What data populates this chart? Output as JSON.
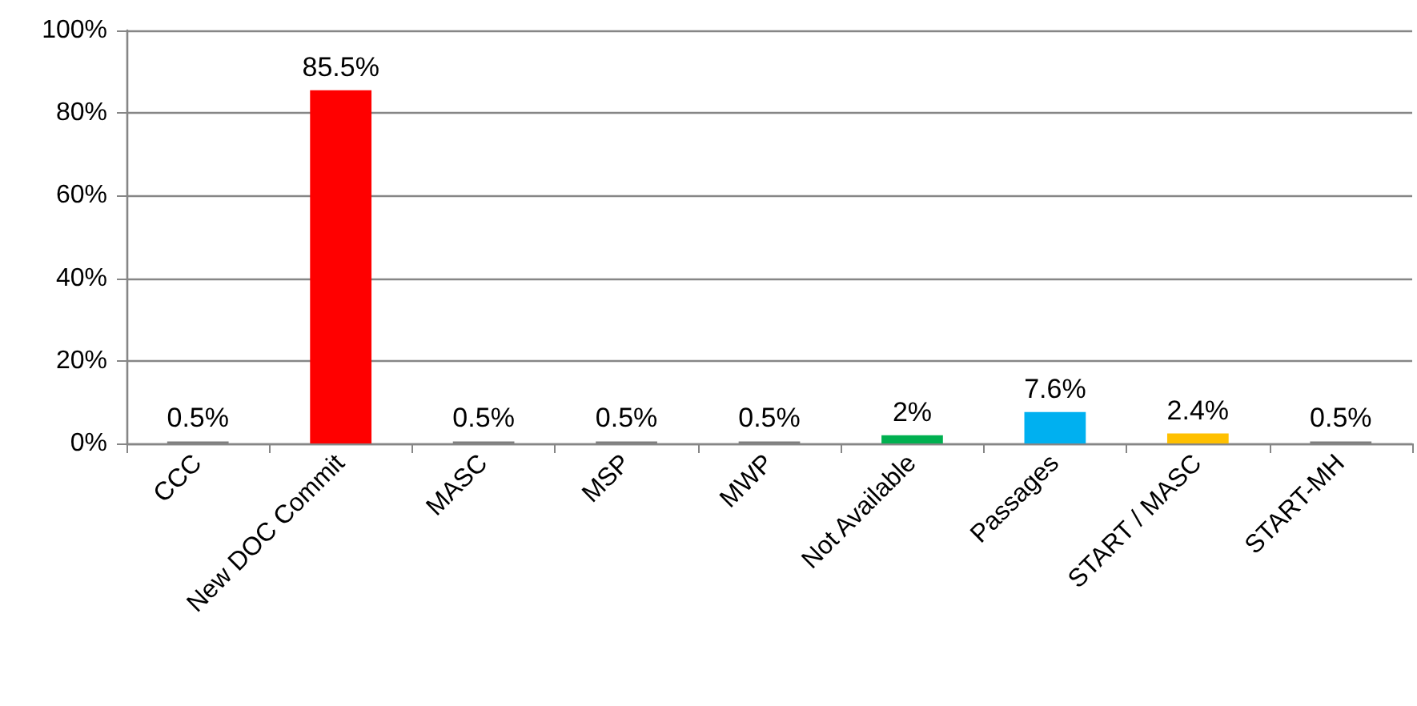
{
  "chart_data": {
    "type": "bar",
    "categories": [
      "CCC",
      "New DOC Commit",
      "MASC",
      "MSP",
      "MWP",
      "Not Available",
      "Passages",
      "START / MASC",
      "START-MH"
    ],
    "values": [
      0.5,
      85.5,
      0.5,
      0.5,
      0.5,
      2,
      7.6,
      2.4,
      0.5
    ],
    "colors": [
      "#7f7f7f",
      "#ff0000",
      "#7f7f7f",
      "#7f7f7f",
      "#7f7f7f",
      "#00b050",
      "#00b0f0",
      "#ffc000",
      "#7f7f7f"
    ],
    "value_labels": [
      "0.5%",
      "85.5%",
      "0.5%",
      "0.5%",
      "0.5%",
      "2%",
      "7.6%",
      "2.4%",
      "0.5%"
    ],
    "ylim": [
      0,
      100
    ],
    "yticks": [
      {
        "value": 0,
        "label": "0%"
      },
      {
        "value": 20,
        "label": "20%"
      },
      {
        "value": 40,
        "label": "40%"
      },
      {
        "value": 60,
        "label": "60%"
      },
      {
        "value": 80,
        "label": "80%"
      },
      {
        "value": 100,
        "label": "100%"
      }
    ],
    "grid": "y"
  }
}
